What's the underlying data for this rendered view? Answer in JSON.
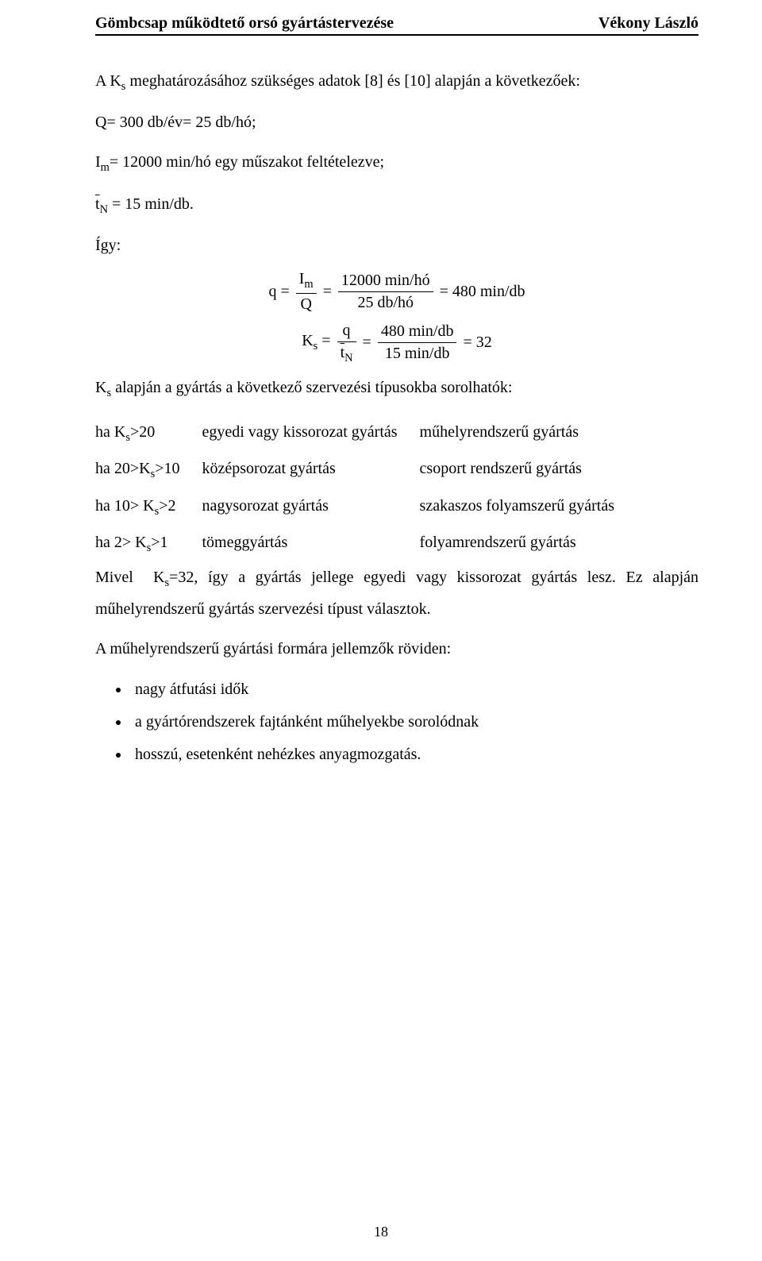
{
  "header": {
    "left": "Gömbcsap működtető orsó gyártástervezése",
    "right": "Vékony László"
  },
  "intro": "A Ks meghatározásához szükséges adatok [8] és [10] alapján a következőek:",
  "given": {
    "line1": "Q= 300 db/év= 25 db/hó;",
    "line2_prefix": "I",
    "line2_sub": "m",
    "line2_rest": "= 12000 min/hó egy műszakot feltételezve;",
    "line3_lhs": "t̄",
    "line3_sub": "N",
    "line3_rhs": " = 15 min/db."
  },
  "igy": "Így:",
  "eq1": {
    "lhs": "q =",
    "f1_num": "Im",
    "f1_den": "Q",
    "mid": "=",
    "f2_num": "12000 min/hó",
    "f2_den": "25 db/hó",
    "rhs": "= 480 min/db"
  },
  "eq2": {
    "lhs": "Ks =",
    "f1_num": "q",
    "f1_den": "t̄N",
    "mid": "=",
    "f2_num": "480 min/db",
    "f2_den": "15 min/db",
    "rhs": "= 32"
  },
  "afterEq": "Ks alapján a gyártás a következő szervezési típusokba sorolhatók:",
  "table": {
    "rows": [
      [
        "ha Ks>20",
        "egyedi vagy kissorozat gyártás",
        "műhelyrendszerű gyártás"
      ],
      [
        "ha 20>Ks>10",
        "középsorozat gyártás",
        "csoport rendszerű gyártás"
      ],
      [
        "ha 10> Ks>2",
        "nagysorozat gyártás",
        "szakaszos folyamszerű gyártás"
      ],
      [
        "ha 2> Ks>1",
        "tömeggyártás",
        "folyamrendszerű gyártás"
      ]
    ]
  },
  "para1": "Mivel  Ks=32, így a gyártás jellege egyedi vagy kissorozat gyártás lesz. Ez alapján műhelyrendszerű gyártás szervezési típust választok.",
  "para2": "A műhelyrendszerű gyártási formára jellemzők röviden:",
  "bullets": [
    "nagy átfutási idők",
    "a gyártórendszerek fajtánként műhelyekbe sorolódnak",
    "hosszú, esetenként nehézkes anyagmozgatás."
  ],
  "pageNumber": "18"
}
